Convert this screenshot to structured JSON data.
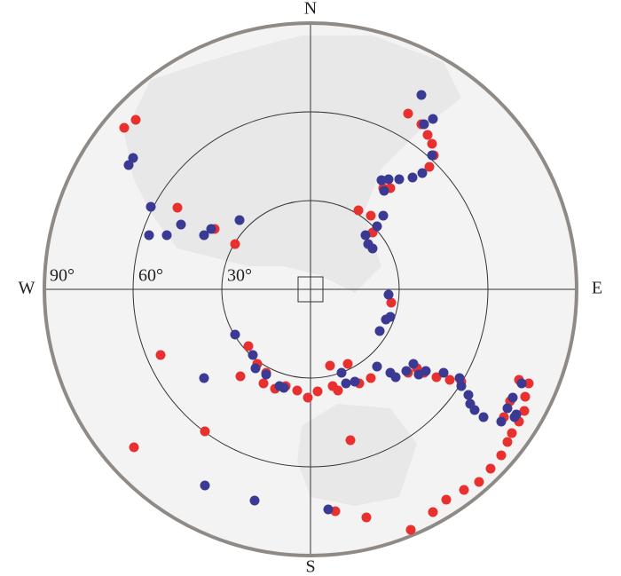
{
  "chart_data": {
    "type": "scatter",
    "directions": {
      "north": "N",
      "south": "S",
      "east": "E",
      "west": "W"
    },
    "rlim": [
      0,
      90
    ],
    "rticks": [
      {
        "value": 30,
        "label": "30°"
      },
      {
        "value": 60,
        "label": "60°"
      },
      {
        "value": 90,
        "label": "90°"
      }
    ],
    "series": [
      {
        "color": "#e8312f",
        "x": [
          -63,
          -59.1,
          -45,
          -32.4,
          -25.5,
          33,
          37.5,
          39.6,
          41.1,
          41.7,
          40.2,
          27,
          24.6,
          16.2,
          20.4,
          21,
          -50.7,
          -23.7,
          -59.7,
          -35.7,
          13.5,
          8.4,
          18.9,
          33.9,
          41.4,
          45.9,
          51.9,
          57,
          60.9,
          64.5,
          66.6,
          68.1,
          70.5,
          72.3,
          73.8,
          72.6,
          70.5,
          67.5,
          65.4,
          51,
          -21,
          -18,
          -15.9,
          -12,
          -8.4,
          -4.5,
          -0.9,
          2.4,
          6.6,
          9.3,
          12.6,
          16.5,
          20.4,
          27.3,
          36,
          38.4,
          42.6,
          47.1,
          33,
          7.5,
          -15
        ],
        "y": [
          54.6,
          57.3,
          27.6,
          20.4,
          15.3,
          59.4,
          55.8,
          52.2,
          49.2,
          45.3,
          41.4,
          34.2,
          34.2,
          26.7,
          24.9,
          19.2,
          -22.2,
          -29.4,
          -53.4,
          -48,
          -51,
          -75,
          -77.1,
          -81.3,
          -75.3,
          -71.1,
          -67.8,
          -65.1,
          -60.6,
          -56.1,
          -51.6,
          -48.6,
          -44.7,
          -41.1,
          -31.8,
          -36.3,
          -30.6,
          -37.8,
          -43.2,
          -31.2,
          -19.2,
          -25.2,
          -31.8,
          -33.6,
          -32.7,
          -34.2,
          -36.6,
          -34.5,
          -25.8,
          -34.2,
          -25.2,
          -31.8,
          -30,
          -4.5,
          -26.7,
          -28.2,
          -29.7,
          -30.6,
          -28.2,
          -32.7,
          -28.2
        ]
      },
      {
        "color": "#3a3a94",
        "x": [
          -61.5,
          -60,
          -54,
          -54.6,
          -48.6,
          -43.8,
          -36,
          -33.6,
          -24,
          37.5,
          41.4,
          38.4,
          41.1,
          37.8,
          34.5,
          30,
          26.4,
          24,
          24.9,
          24.6,
          22.5,
          18.6,
          19.5,
          21,
          26.4,
          27,
          25.5,
          23.4,
          -25.5,
          -19.5,
          -18.6,
          -15,
          -10.5,
          -9,
          -36,
          -35.7,
          -18.9,
          6,
          10.5,
          12,
          15,
          22.5,
          27,
          28.8,
          32.4,
          34.8,
          36.6,
          39,
          45,
          50.4,
          53.4,
          55.5,
          58.5,
          64.5,
          66.6,
          68.4,
          69.6,
          71.4,
          69,
          51,
          54
        ],
        "y": [
          42,
          44.4,
          27.9,
          18.3,
          18.3,
          21.9,
          18.3,
          20.4,
          23.4,
          65.7,
          57.6,
          55.8,
          45.3,
          39.3,
          37.8,
          37.2,
          37.2,
          36.9,
          33.3,
          24.9,
          21.3,
          18.3,
          15.3,
          13.8,
          -1.8,
          -9.3,
          -10.2,
          -14.1,
          -15.3,
          -22.2,
          -26.7,
          -28.8,
          -32.7,
          -33.3,
          -30,
          -66.3,
          -71.4,
          -74.4,
          -28.2,
          -31.8,
          -31.2,
          -26.1,
          -28.2,
          -29.7,
          -27.6,
          -25.2,
          -28.8,
          -27.6,
          -28.2,
          -30,
          -35.7,
          -40.8,
          -43.2,
          -44.7,
          -40.2,
          -36.6,
          -42.3,
          -31.8,
          -43.2,
          -32.7,
          -38.7
        ]
      }
    ]
  }
}
